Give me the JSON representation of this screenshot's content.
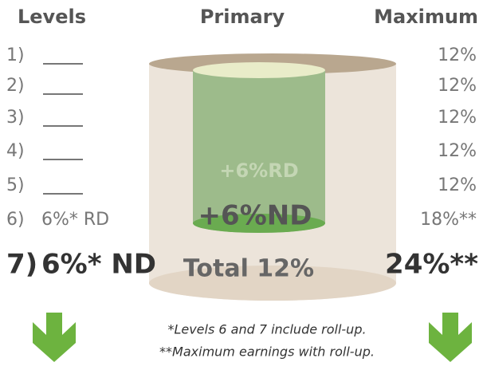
{
  "headers": {
    "levels": "Levels",
    "primary": "Primary",
    "maximum": "Maximum"
  },
  "levels": [
    {
      "number": "1)",
      "max": "12%"
    },
    {
      "number": "2)",
      "max": "12%"
    },
    {
      "number": "3)",
      "max": "12%"
    },
    {
      "number": "4)",
      "max": "12%"
    },
    {
      "number": "5)",
      "max": "12%"
    },
    {
      "number": "6)",
      "label": "6%* RD",
      "max": "18%**"
    }
  ],
  "level7": {
    "number": "7)",
    "label": "6%* ND",
    "max": "24%**"
  },
  "primary": {
    "rd": "+6%RD",
    "nd": "+6%ND",
    "total": "Total 12%"
  },
  "footnotes": [
    "*Levels 6 and 7 include roll-up.",
    "**Maximum earnings with roll-up."
  ]
}
